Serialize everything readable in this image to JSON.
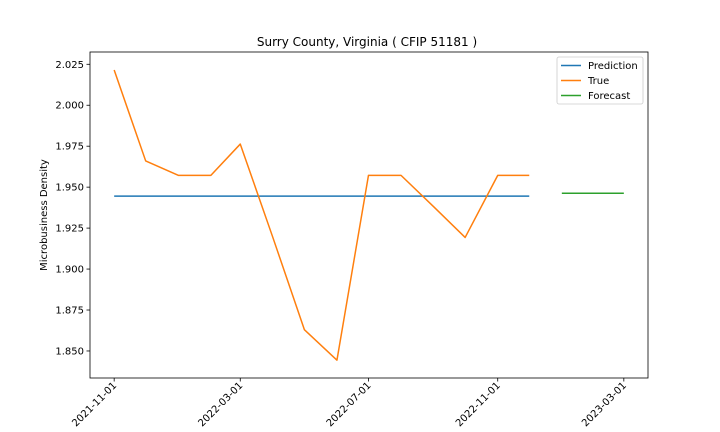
{
  "chart_data": {
    "type": "line",
    "title": "Surry County, Virginia ( CFIP 51181 )",
    "xlabel": "",
    "ylabel": "Microbusiness Density",
    "x_type": "date",
    "xlim": [
      "2021-10-09",
      "2023-03-24"
    ],
    "ylim": [
      1.8335,
      2.0325
    ],
    "x_ticks": [
      "2021-11-01",
      "2022-03-01",
      "2022-07-01",
      "2022-11-01",
      "2023-03-01"
    ],
    "y_ticks": [
      1.85,
      1.875,
      1.9,
      1.925,
      1.95,
      1.975,
      2.0,
      2.025
    ],
    "y_tick_labels": [
      "1.850",
      "1.875",
      "1.900",
      "1.925",
      "1.950",
      "1.975",
      "2.000",
      "2.025"
    ],
    "grid": false,
    "legend_position": "top-right",
    "series": [
      {
        "name": "Prediction",
        "color": "#1f77b4",
        "x": [
          "2021-11-01",
          "2022-12-01"
        ],
        "y": [
          1.9445,
          1.9445
        ]
      },
      {
        "name": "True",
        "color": "#ff7f0e",
        "x": [
          "2021-11-01",
          "2021-12-01",
          "2022-01-01",
          "2022-02-01",
          "2022-03-01",
          "2022-04-01",
          "2022-05-01",
          "2022-06-01",
          "2022-07-01",
          "2022-08-01",
          "2022-09-01",
          "2022-10-01",
          "2022-11-01",
          "2022-12-01"
        ],
        "y": [
          2.0215,
          1.966,
          1.9572,
          1.9572,
          1.9763,
          1.9193,
          1.863,
          1.8444,
          1.9572,
          1.9572,
          1.9381,
          1.9193,
          1.9572,
          1.9572
        ]
      },
      {
        "name": "Forecast",
        "color": "#2ca02c",
        "x": [
          "2023-01-01",
          "2023-03-01"
        ],
        "y": [
          1.9463,
          1.9463
        ]
      }
    ]
  }
}
